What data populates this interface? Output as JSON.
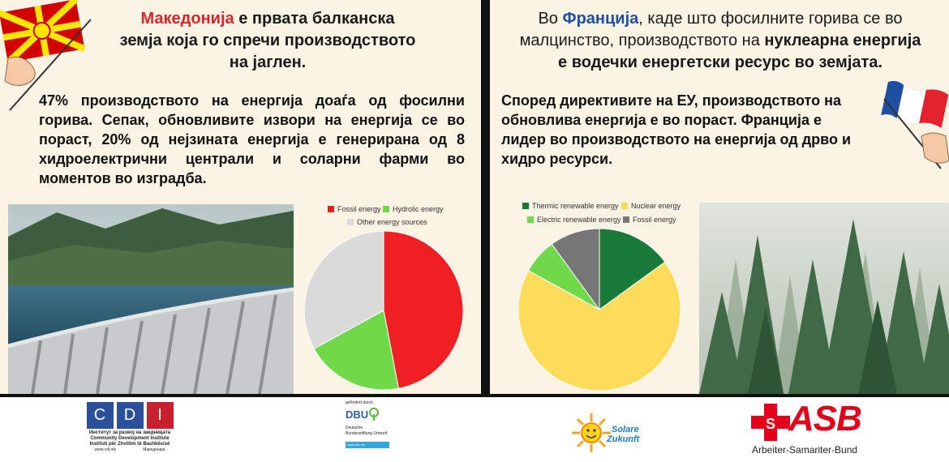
{
  "left": {
    "title_highlight": "Македонија",
    "title_rest_1": " е првата балканска",
    "title_line2": "земја која го спречи производството",
    "title_line3": "на јаглен.",
    "body": "47% производството на енергија доаѓа од фосилни горива. Сепак, обновливите извори на енергија се во пораст, 20% од нејзината енергија е генерирана од 8 хидроелектрични централи и соларни фарми во моментов во изградба.",
    "chart_data": {
      "type": "pie",
      "legend_position": "top",
      "labels": [
        "Fossil energy",
        "Hydrolic energy",
        "Other energy sources"
      ],
      "values": [
        47,
        20,
        33
      ],
      "colors": [
        "#ee2024",
        "#6fd94a",
        "#dadada"
      ]
    }
  },
  "right": {
    "title_pre": "Во ",
    "title_highlight": "Франција",
    "title_rest_1": ", каде што фосилните горива се во",
    "title_line2_pre": "малцинство, производството на ",
    "title_line2_bold": "нуклеарна енергија",
    "title_line3": "е водечки енергетски ресурс во земјата.",
    "body": "Според директивите на ЕУ, производството на обновлива енергија е во пораст. Франција е лидер во производството на енергија од дрво и хидро ресурси.",
    "chart_data": {
      "type": "pie",
      "legend_position": "top",
      "labels": [
        "Thermic renewable energy",
        "Nuclear energy",
        "Electric renewable energy",
        "Fossil energy"
      ],
      "values": [
        15,
        68,
        7,
        10
      ],
      "colors": [
        "#1a7a3a",
        "#fddc5c",
        "#6fd94a",
        "#767676"
      ]
    }
  },
  "footer": {
    "cdi": {
      "letters": [
        "C",
        "D",
        "I"
      ],
      "line1": "Институт за развој на заедницата",
      "line2": "Community Development Institute",
      "line3": "Instituti për Zhvillim të Bashkësisë",
      "line4a": "www.cdi.mk",
      "line4b": "Македонија",
      "color": "#2c4f9a",
      "accent": "#c8202f"
    },
    "dbu": {
      "top": "gefördert durch",
      "name": "DBU",
      "sub1": "Deutsche",
      "sub2": "Bundesstiftung Umwelt",
      "url": "www.dbu.de"
    },
    "solare": {
      "line1": "Solare",
      "line2": "Zukunft"
    },
    "asb": {
      "name": "ASB",
      "sub": "Arbeiter-Samariter-Bund",
      "color": "#e2001a"
    }
  }
}
